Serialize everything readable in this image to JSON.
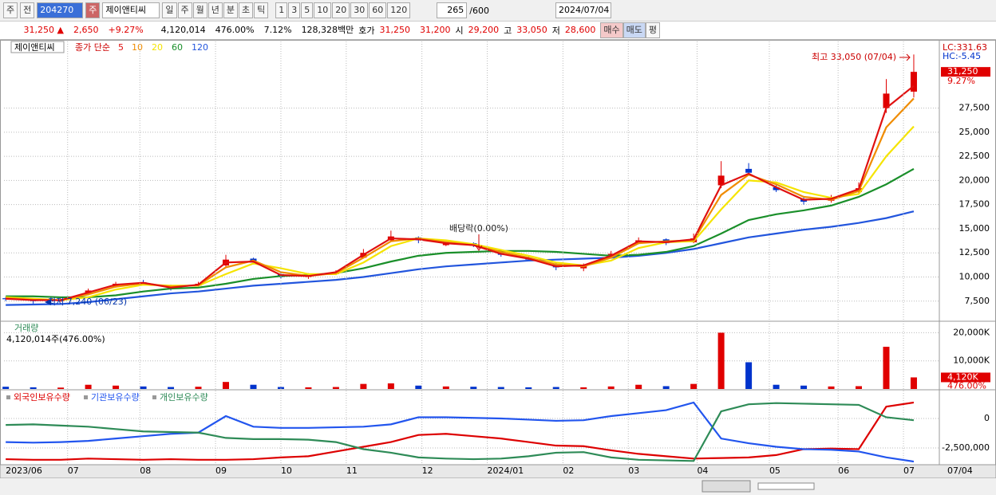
{
  "toolbar": {
    "period": "주",
    "mode": "전",
    "code": "204270",
    "name_button": "주",
    "stock_name": "제이앤티씨",
    "intervals": [
      "일",
      "주",
      "월",
      "년",
      "분",
      "초",
      "틱"
    ],
    "minutes": [
      "1",
      "3",
      "5",
      "10",
      "20",
      "30",
      "60",
      "120"
    ],
    "count": "265",
    "max_count": "/600",
    "date": "2024/07/04"
  },
  "quote": {
    "price": "31,250 ▲",
    "change": "2,650",
    "change_rate": "+9.27%",
    "volume": "4,120,014",
    "volume_ratio": "476.00%",
    "turnover": "7.12%",
    "amount": "128,328백만",
    "ask_label": "호가",
    "ask": "31,250",
    "bid": "31,200",
    "open_label": "시",
    "open": "29,200",
    "high_label": "고",
    "high": "33,050",
    "low_label": "저",
    "low": "28,600",
    "buy": "매수",
    "sell": "매도",
    "avg": "평"
  },
  "chart_data": [
    {
      "type": "candlestick",
      "title": "제이앤티씨",
      "legend_title": "종가 단순",
      "up_color": "#e00000",
      "down_color": "#0033cc",
      "x": [
        0,
        8,
        16,
        24,
        32,
        40,
        48,
        56,
        64,
        72,
        80,
        88,
        96,
        104,
        112,
        120,
        128,
        136,
        144,
        152,
        160,
        168,
        176,
        184,
        192,
        200,
        208,
        216,
        224,
        232,
        240,
        248,
        256,
        264
      ],
      "open": [
        7800,
        7650,
        7500,
        8200,
        9000,
        9450,
        9000,
        9100,
        11200,
        11900,
        10300,
        10000,
        10300,
        12000,
        13800,
        14100,
        13300,
        13500,
        12500,
        12000,
        11300,
        10900,
        12000,
        13500,
        13900,
        13600,
        19500,
        21200,
        19300,
        18100,
        17900,
        18800,
        27500,
        29200
      ],
      "high": [
        7950,
        7800,
        7750,
        8800,
        9500,
        9700,
        9200,
        9500,
        12300,
        12000,
        10500,
        10400,
        10700,
        12900,
        14800,
        14200,
        13700,
        13600,
        12700,
        12200,
        11500,
        11400,
        12700,
        14100,
        14000,
        14500,
        22000,
        21800,
        19500,
        18400,
        18500,
        19800,
        30500,
        33050
      ],
      "low": [
        7500,
        7240,
        7400,
        8100,
        8900,
        9200,
        8600,
        9000,
        11000,
        11300,
        9800,
        9800,
        10200,
        11900,
        13700,
        13500,
        13200,
        13100,
        12100,
        11700,
        10700,
        10600,
        11900,
        13400,
        13300,
        13500,
        19200,
        20500,
        18800,
        17500,
        17700,
        18600,
        27000,
        28600
      ],
      "close": [
        7700,
        7500,
        7600,
        8600,
        9300,
        9400,
        8800,
        9300,
        11800,
        11500,
        10000,
        10200,
        10500,
        12500,
        14200,
        13800,
        13500,
        13300,
        12300,
        11800,
        11000,
        11200,
        12400,
        13800,
        13500,
        14000,
        20500,
        20800,
        19000,
        17800,
        18200,
        19200,
        29000,
        31250
      ],
      "series": [
        {
          "name": "5",
          "color": "#e01010",
          "values": [
            7750,
            7600,
            7600,
            8400,
            9200,
            9400,
            8900,
            9200,
            11500,
            11600,
            10200,
            10100,
            10500,
            12300,
            14000,
            13900,
            13500,
            13300,
            12400,
            11900,
            11100,
            11200,
            12200,
            13700,
            13600,
            13900,
            19500,
            20700,
            19300,
            18000,
            18100,
            19100,
            27500,
            29800
          ]
        },
        {
          "name": "10",
          "color": "#f08c00",
          "values": [
            7800,
            7650,
            7600,
            8200,
            9000,
            9350,
            9000,
            9150,
            11000,
            11700,
            10500,
            10100,
            10400,
            12000,
            13700,
            14000,
            13600,
            13300,
            12600,
            12000,
            11300,
            11100,
            12000,
            13500,
            13700,
            13800,
            18500,
            20600,
            19600,
            18300,
            18000,
            18900,
            25500,
            28500
          ]
        },
        {
          "name": "20",
          "color": "#f5e400",
          "values": [
            7900,
            7750,
            7600,
            7900,
            8700,
            9200,
            9100,
            9100,
            10300,
            11400,
            10900,
            10300,
            10300,
            11500,
            13200,
            14000,
            13800,
            13400,
            12800,
            12200,
            11500,
            11200,
            11700,
            13000,
            13600,
            13700,
            17000,
            20000,
            19800,
            18800,
            18200,
            18600,
            22500,
            25600
          ]
        },
        {
          "name": "60",
          "color": "#1a8f2a",
          "values": [
            8000,
            8000,
            7900,
            7900,
            8100,
            8500,
            8800,
            8900,
            9300,
            9800,
            10100,
            10200,
            10400,
            10900,
            11600,
            12200,
            12500,
            12600,
            12700,
            12700,
            12600,
            12400,
            12200,
            12300,
            12600,
            13200,
            14500,
            15900,
            16500,
            16900,
            17400,
            18300,
            19600,
            21200
          ]
        },
        {
          "name": "120",
          "color": "#2255dd",
          "values": [
            7100,
            7150,
            7200,
            7400,
            7700,
            8000,
            8300,
            8500,
            8800,
            9100,
            9300,
            9500,
            9700,
            10000,
            10400,
            10800,
            11100,
            11300,
            11500,
            11700,
            11800,
            11900,
            12000,
            12200,
            12500,
            12900,
            13500,
            14100,
            14500,
            14900,
            15200,
            15600,
            16100,
            16800
          ]
        }
      ],
      "xlim": [
        -0.5,
        271.2
      ],
      "ylim": [
        5500,
        34400
      ],
      "yticks": [
        {
          "value": 7500,
          "label": "7,500"
        },
        {
          "value": 10000,
          "label": "10,000"
        },
        {
          "value": 12500,
          "label": "12,500"
        },
        {
          "value": 15000,
          "label": "15,000"
        },
        {
          "value": 17500,
          "label": "17,500"
        },
        {
          "value": 20000,
          "label": "20,000"
        },
        {
          "value": 22500,
          "label": "22,500"
        },
        {
          "value": 25000,
          "label": "25,000"
        },
        {
          "value": 27500,
          "label": "27,500"
        }
      ],
      "annotations": [
        "최고 33,050 (07/04)",
        "배당락(0.00%)",
        "최저 7,240 (06/23)"
      ],
      "price_tags": [
        "LC:331.63",
        "HC:-5.45"
      ],
      "last_price": {
        "value": 31250,
        "label": "31,250"
      },
      "change_label": "9.27%"
    },
    {
      "type": "bar",
      "title": "거래량",
      "subtitle": "4,120,014주(476.00%)",
      "x": [
        0,
        8,
        16,
        24,
        32,
        40,
        48,
        56,
        64,
        72,
        80,
        88,
        96,
        104,
        112,
        120,
        128,
        136,
        144,
        152,
        160,
        168,
        176,
        184,
        192,
        200,
        208,
        216,
        224,
        232,
        240,
        248,
        256,
        264
      ],
      "values": [
        800,
        600,
        500,
        1500,
        1200,
        900,
        700,
        800,
        2500,
        1500,
        700,
        600,
        700,
        1800,
        2000,
        1200,
        900,
        800,
        700,
        600,
        700,
        600,
        900,
        1500,
        1000,
        1800,
        20000,
        9500,
        1500,
        1200,
        900,
        1000,
        15000,
        4120
      ],
      "xlim": [
        -0.5,
        271.2
      ],
      "ylim": [
        0,
        23800
      ],
      "yticks": [
        {
          "value": 10000,
          "label": "10,000K"
        },
        {
          "value": 20000,
          "label": "20,000K"
        }
      ],
      "last_value": {
        "value": 4120,
        "label": "4,120K"
      },
      "last_ratio": "476.00%"
    },
    {
      "type": "line",
      "x": [
        0,
        8,
        16,
        24,
        32,
        40,
        48,
        56,
        64,
        72,
        80,
        88,
        96,
        104,
        112,
        120,
        128,
        136,
        144,
        152,
        160,
        168,
        176,
        184,
        192,
        200,
        208,
        216,
        224,
        232,
        240,
        248,
        256,
        264
      ],
      "series": [
        {
          "name": "외국인보유수량",
          "color": "#dd0000",
          "values": [
            -3450000,
            -3500000,
            -3500000,
            -3400000,
            -3450000,
            -3500000,
            -3450000,
            -3500000,
            -3500000,
            -3450000,
            -3300000,
            -3200000,
            -2800000,
            -2400000,
            -2000000,
            -1400000,
            -1300000,
            -1500000,
            -1700000,
            -2000000,
            -2300000,
            -2350000,
            -2700000,
            -3000000,
            -3200000,
            -3400000,
            -3350000,
            -3300000,
            -3100000,
            -2600000,
            -2550000,
            -2600000,
            1000000,
            1350000
          ]
        },
        {
          "name": "기관보유수량",
          "color": "#2255ee",
          "values": [
            -2000000,
            -2050000,
            -2000000,
            -1900000,
            -1700000,
            -1500000,
            -1300000,
            -1200000,
            200000,
            -700000,
            -800000,
            -800000,
            -750000,
            -700000,
            -500000,
            100000,
            100000,
            50000,
            0,
            -100000,
            -200000,
            -150000,
            200000,
            450000,
            700000,
            1350000,
            -1700000,
            -2100000,
            -2400000,
            -2600000,
            -2650000,
            -2800000,
            -3300000,
            -3650000
          ]
        },
        {
          "name": "개인보유수량",
          "color": "#2e8b57",
          "values": [
            -550000,
            -500000,
            -600000,
            -700000,
            -900000,
            -1100000,
            -1150000,
            -1200000,
            -1650000,
            -1750000,
            -1750000,
            -1800000,
            -2000000,
            -2600000,
            -2900000,
            -3300000,
            -3400000,
            -3450000,
            -3400000,
            -3200000,
            -2900000,
            -2850000,
            -3300000,
            -3500000,
            -3550000,
            -3600000,
            600000,
            1200000,
            1300000,
            1250000,
            1200000,
            1150000,
            100000,
            -150000
          ]
        }
      ],
      "xlim": [
        -0.5,
        271.2
      ],
      "ylim": [
        -3850000,
        2360000
      ],
      "yticks": [
        0,
        {
          "value": -2500000,
          "label": "-2,500,000"
        }
      ],
      "xticks": [
        {
          "value": 0,
          "label": "2023/06"
        },
        {
          "value": 18,
          "label": "07"
        },
        {
          "value": 39,
          "label": "08"
        },
        {
          "value": 61,
          "label": "09"
        },
        {
          "value": 80,
          "label": "10"
        },
        {
          "value": 99,
          "label": "11"
        },
        {
          "value": 121,
          "label": "12"
        },
        {
          "value": 140,
          "label": "2024/01"
        },
        {
          "value": 162,
          "label": "02"
        },
        {
          "value": 181,
          "label": "03"
        },
        {
          "value": 201,
          "label": "04"
        },
        {
          "value": 222,
          "label": "05"
        },
        {
          "value": 242,
          "label": "06"
        },
        {
          "value": 261,
          "label": "07"
        }
      ],
      "x_cursor_label": "07/04"
    }
  ]
}
